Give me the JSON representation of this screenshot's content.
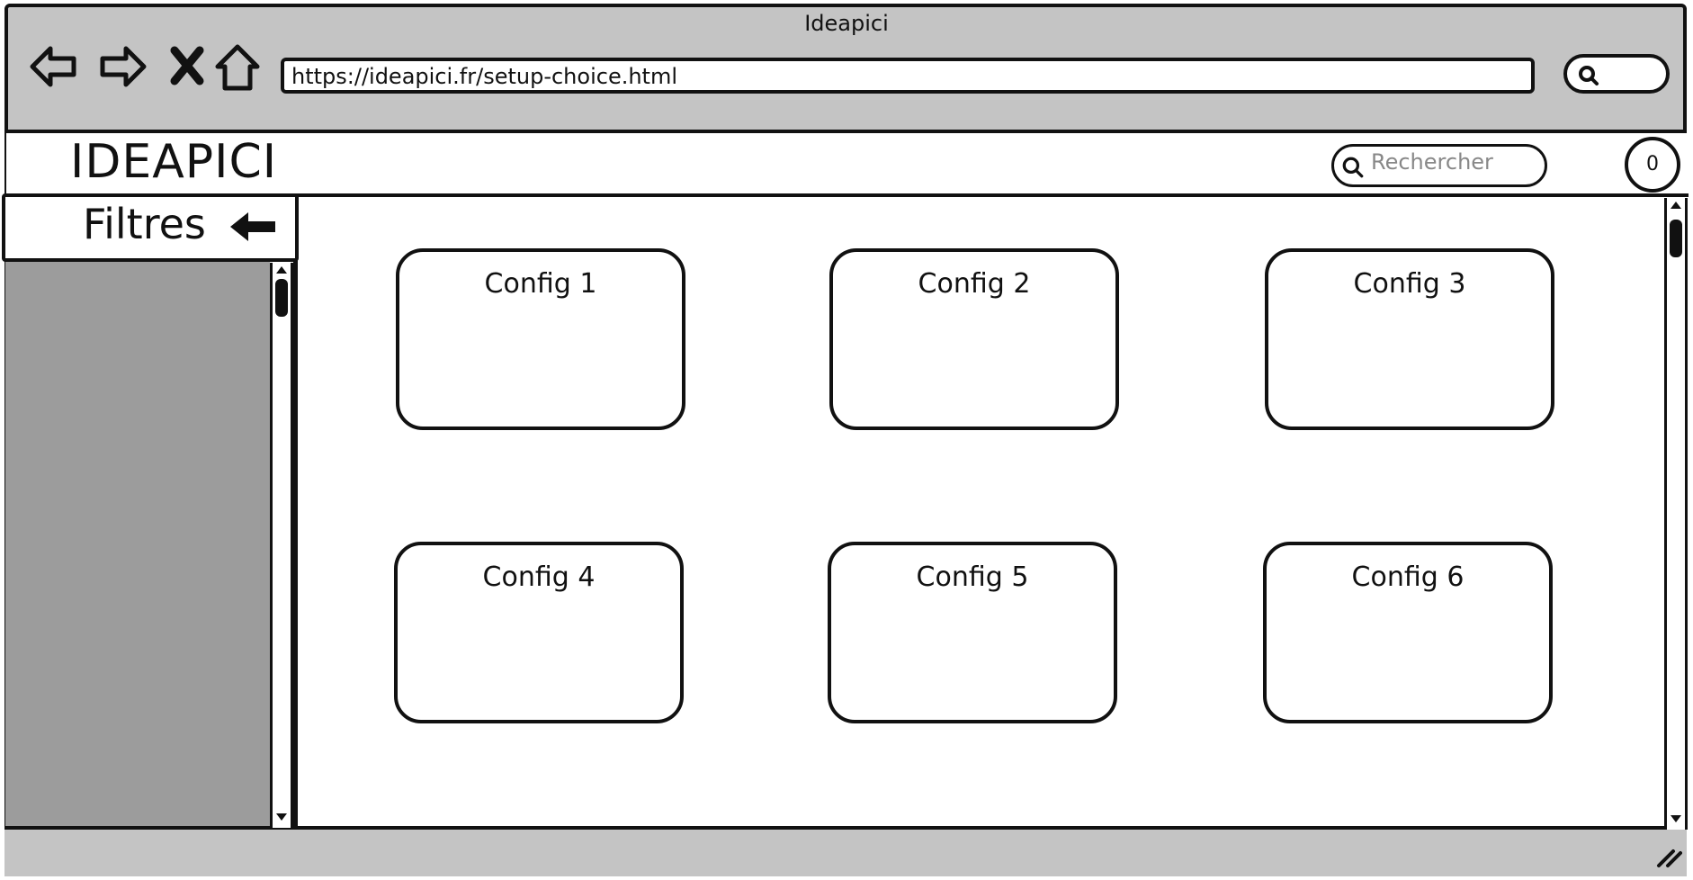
{
  "browser": {
    "window_title": "Ideapici",
    "url": "https://ideapici.fr/setup-choice.html",
    "nav_icons": [
      "back-arrow-icon",
      "forward-arrow-icon",
      "stop-icon",
      "home-icon"
    ]
  },
  "header": {
    "brand": "IDEAPICI",
    "search_placeholder": "Rechercher",
    "notification_count": "0"
  },
  "sidebar": {
    "title": "Filtres",
    "collapse_icon": "arrow-left-icon"
  },
  "configs": [
    {
      "label": "Config 1"
    },
    {
      "label": "Config 2"
    },
    {
      "label": "Config 3"
    },
    {
      "label": "Config 4"
    },
    {
      "label": "Config 5"
    },
    {
      "label": "Config 6"
    }
  ],
  "colors": {
    "chrome": "#c4c4c4",
    "sidebar": "#9c9c9c",
    "stroke": "#111111"
  }
}
